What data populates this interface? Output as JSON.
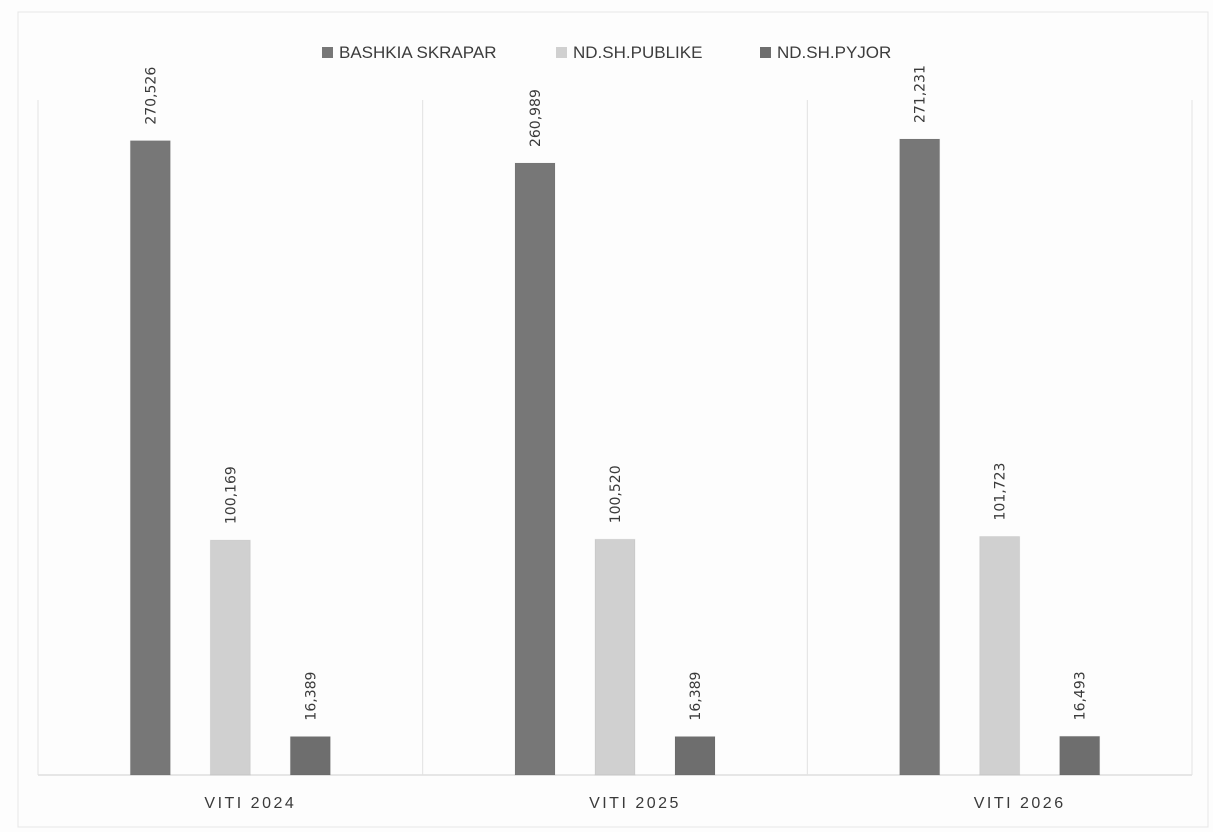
{
  "chart_data": {
    "type": "bar",
    "title": "",
    "xlabel": "",
    "ylabel": "",
    "categories": [
      "VITI 2024",
      "VITI 2025",
      "VITI 2026"
    ],
    "series": [
      {
        "name": "BASHKIA SKRAPAR",
        "values": [
          270526,
          260989,
          271231
        ],
        "labels": [
          "270,526",
          "260,989",
          "271,231"
        ],
        "color": "#777777"
      },
      {
        "name": "ND.SH.PUBLIKE",
        "values": [
          100169,
          100520,
          101723
        ],
        "labels": [
          "100,169",
          "100,520",
          "101,723"
        ],
        "color": "#d0d0d0"
      },
      {
        "name": "ND.SH.PYJOR",
        "values": [
          16389,
          16389,
          16493
        ],
        "labels": [
          "16,389",
          "16,389",
          "16,493"
        ],
        "color": "#6e6e6e"
      }
    ],
    "ylim": [
      0,
      290000
    ],
    "grid": false,
    "legend_position": "top-center",
    "category_separators": true
  }
}
